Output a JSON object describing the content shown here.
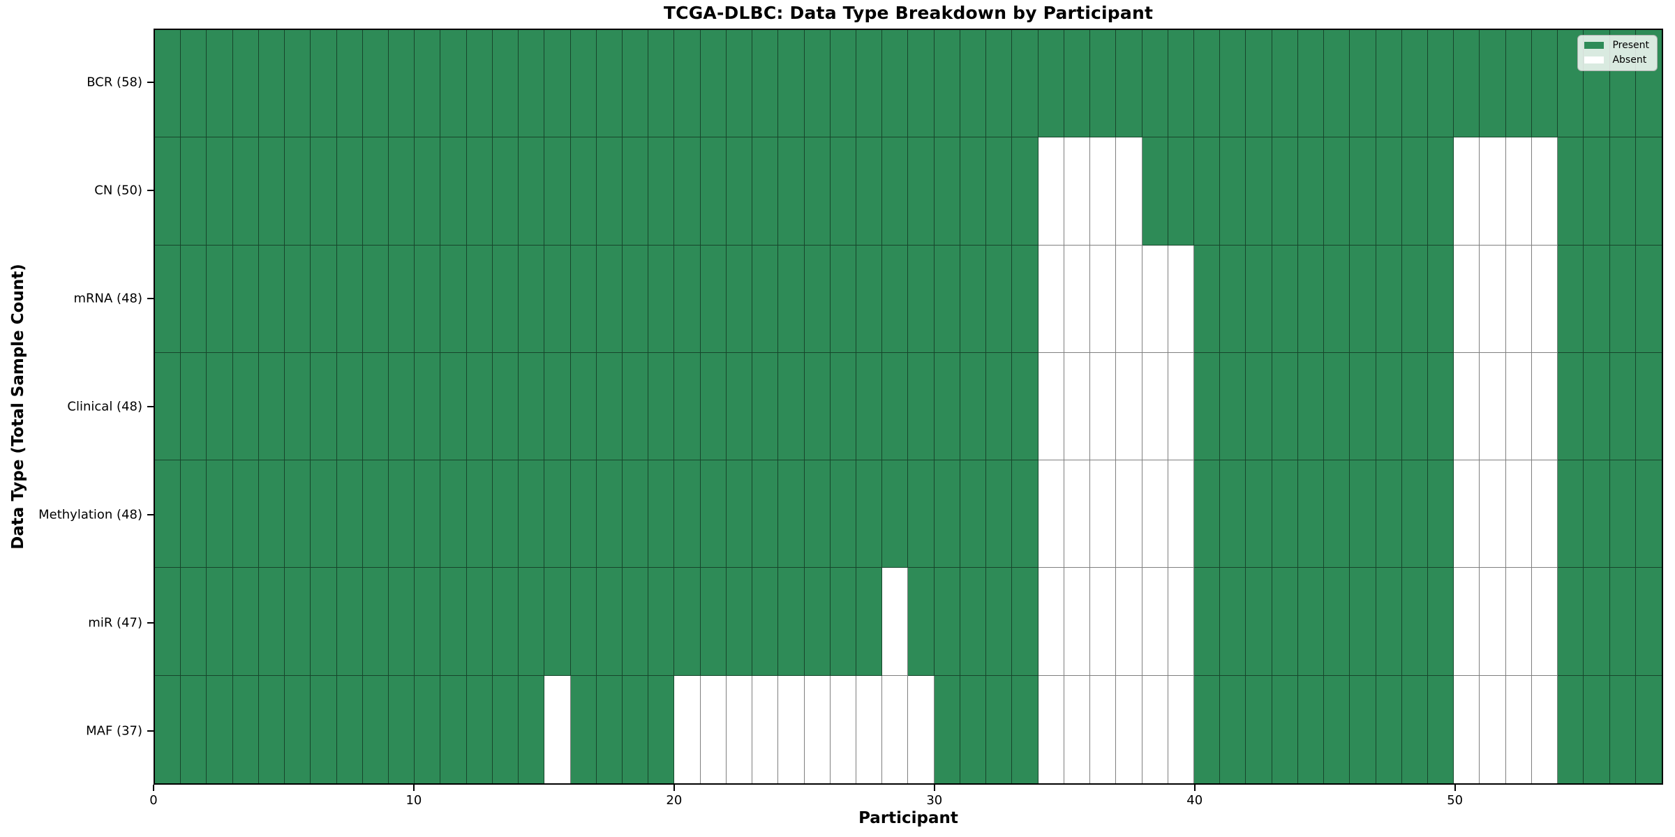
{
  "chart_data": {
    "type": "heatmap",
    "title": "TCGA-DLBC: Data Type Breakdown by Participant",
    "xlabel": "Participant",
    "ylabel": "Data Type (Total Sample Count)",
    "n_participants": 58,
    "x_ticks": [
      0,
      10,
      20,
      30,
      40,
      50
    ],
    "x_range": [
      0,
      58
    ],
    "grid": true,
    "rows": [
      {
        "label": "BCR (58)",
        "data_type": "BCR",
        "present_count": 58,
        "absent_participants": []
      },
      {
        "label": "CN (50)",
        "data_type": "CN",
        "present_count": 50,
        "absent_participants": [
          34,
          35,
          36,
          37,
          50,
          51,
          52,
          53
        ]
      },
      {
        "label": "mRNA (48)",
        "data_type": "mRNA",
        "present_count": 48,
        "absent_participants": [
          34,
          35,
          36,
          37,
          38,
          39,
          50,
          51,
          52,
          53
        ]
      },
      {
        "label": "Clinical (48)",
        "data_type": "Clinical",
        "present_count": 48,
        "absent_participants": [
          34,
          35,
          36,
          37,
          38,
          39,
          50,
          51,
          52,
          53
        ]
      },
      {
        "label": "Methylation (48)",
        "data_type": "Methylation",
        "present_count": 48,
        "absent_participants": [
          34,
          35,
          36,
          37,
          38,
          39,
          50,
          51,
          52,
          53
        ]
      },
      {
        "label": "miR (47)",
        "data_type": "miR",
        "present_count": 47,
        "absent_participants": [
          28,
          34,
          35,
          36,
          37,
          38,
          39,
          50,
          51,
          52,
          53
        ]
      },
      {
        "label": "MAF (37)",
        "data_type": "MAF",
        "present_count": 37,
        "absent_participants": [
          15,
          20,
          21,
          22,
          23,
          24,
          25,
          26,
          27,
          28,
          29,
          34,
          35,
          36,
          37,
          38,
          39,
          50,
          51,
          52,
          53
        ]
      }
    ],
    "legend": {
      "position": "upper right",
      "entries": [
        {
          "label": "Present",
          "color": "#2e8b57"
        },
        {
          "label": "Absent",
          "color": "#ffffff"
        }
      ]
    },
    "colors": {
      "present": "#2e8b57",
      "absent": "#ffffff",
      "gridline": "rgba(0,0,0,0.5)",
      "spine": "#000000",
      "background": "#ffffff"
    }
  }
}
